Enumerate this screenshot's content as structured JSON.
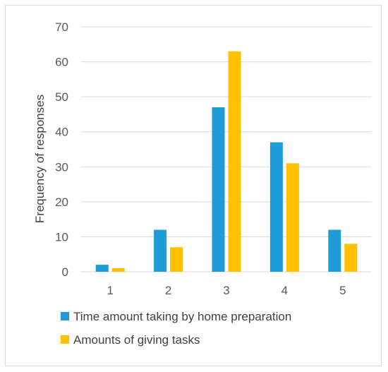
{
  "chart_data": {
    "type": "bar",
    "title": "",
    "xlabel": "",
    "ylabel": "Frequency of responses",
    "categories": [
      "1",
      "2",
      "3",
      "4",
      "5"
    ],
    "ylim": [
      0,
      70
    ],
    "yticks": [
      0,
      10,
      20,
      30,
      40,
      50,
      60,
      70
    ],
    "grid": true,
    "legend_position": "bottom",
    "series": [
      {
        "name": "Time amount taking by home preparation",
        "color": "#1F9BD7",
        "values": [
          2,
          12,
          47,
          37,
          12
        ]
      },
      {
        "name": "Amounts of giving tasks",
        "color": "#FFC000",
        "values": [
          1,
          7,
          63,
          31,
          8
        ]
      }
    ]
  }
}
